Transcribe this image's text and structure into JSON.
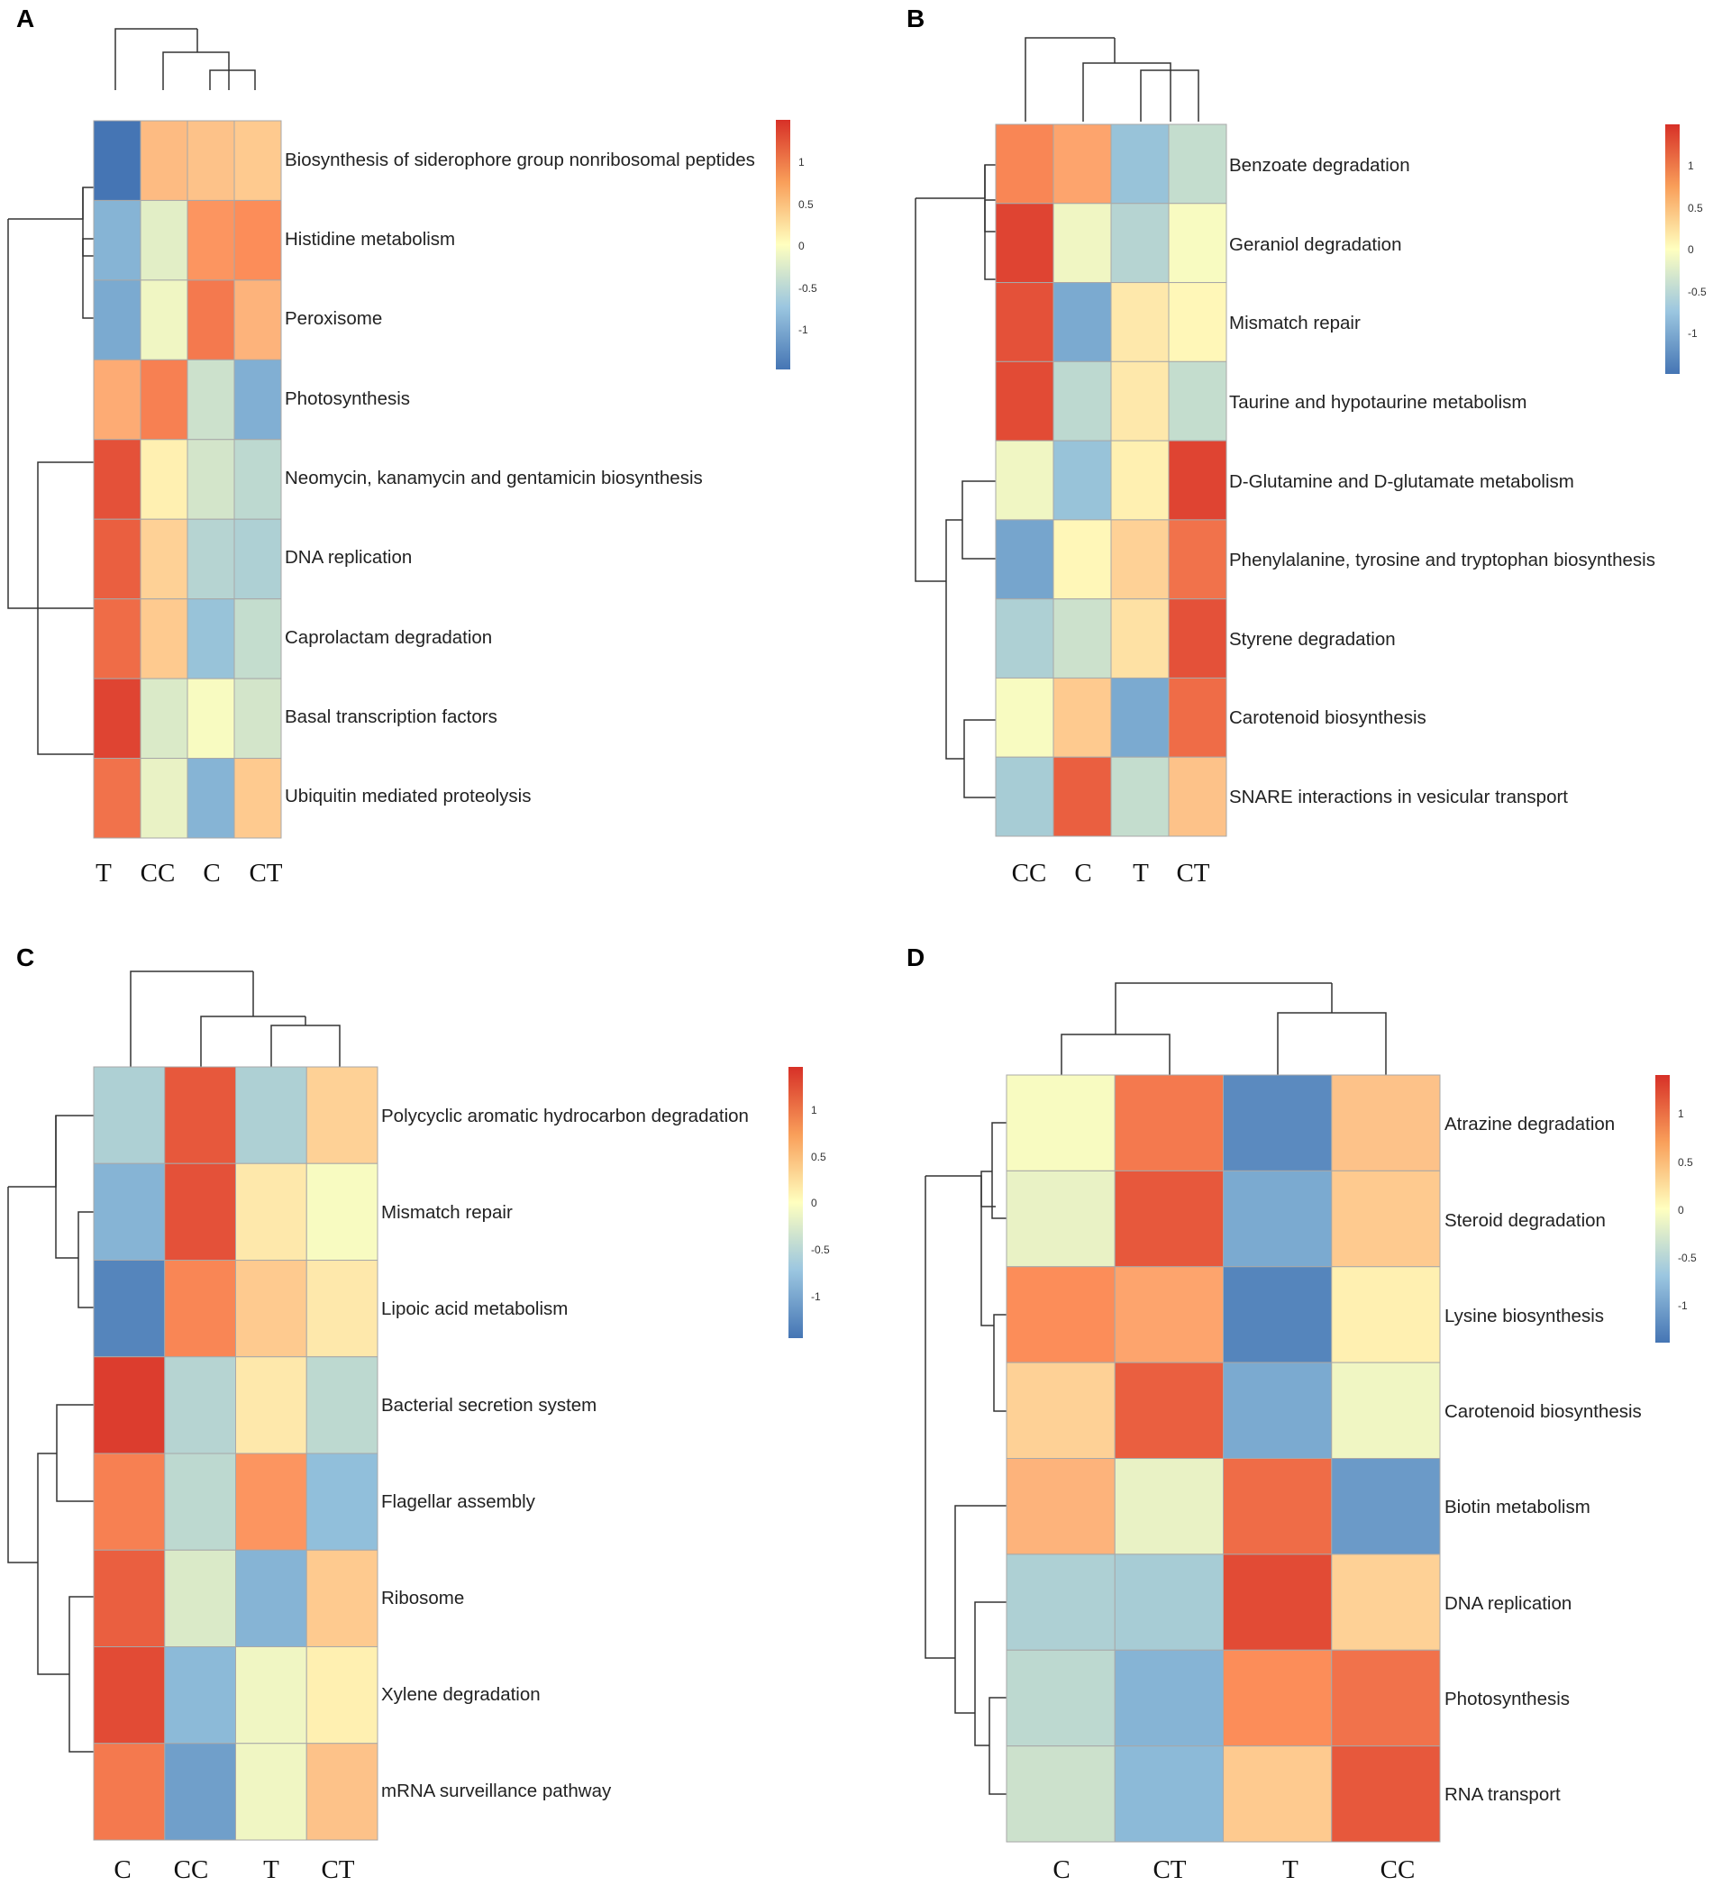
{
  "chart_data": [
    {
      "panel": "A",
      "type": "heatmap",
      "columns": [
        "T",
        "CC",
        "C",
        "CT"
      ],
      "rows": [
        "Biosynthesis of siderophore group nonribosomal peptides",
        "Histidine metabolism",
        "Peroxisome",
        "Photosynthesis",
        "Neomycin, kanamycin and gentamicin biosynthesis",
        "DNA replication",
        "Caprolactam degradation",
        "Basal transcription factors",
        "Ubiquitin mediated proteolysis"
      ],
      "values": [
        [
          -1.45,
          0.45,
          0.4,
          0.35
        ],
        [
          -0.85,
          -0.2,
          0.7,
          0.75
        ],
        [
          -0.95,
          -0.1,
          0.9,
          0.5
        ],
        [
          0.55,
          0.85,
          -0.35,
          -0.9
        ],
        [
          1.2,
          0.1,
          -0.3,
          -0.45
        ],
        [
          1.1,
          0.3,
          -0.5,
          -0.55
        ],
        [
          1.0,
          0.35,
          -0.7,
          -0.4
        ],
        [
          1.3,
          -0.25,
          -0.05,
          -0.3
        ],
        [
          0.95,
          -0.15,
          -0.85,
          0.35
        ]
      ],
      "legend_ticks": [
        "1",
        "0.5",
        "0",
        "-0.5",
        "-1"
      ],
      "value_range": [
        -1.45,
        1.45
      ]
    },
    {
      "panel": "B",
      "type": "heatmap",
      "columns": [
        "CC",
        "C",
        "T",
        "CT"
      ],
      "rows": [
        "Benzoate degradation",
        "Geraniol degradation",
        "Mismatch repair",
        "Taurine and hypotaurine metabolism",
        "D-Glutamine and D-glutamate metabolism",
        "Phenylalanine, tyrosine and tryptophan biosynthesis",
        "Styrene degradation",
        "Carotenoid biosynthesis",
        "SNARE interactions in vesicular transport"
      ],
      "values": [
        [
          0.8,
          0.6,
          -0.7,
          -0.4
        ],
        [
          1.3,
          -0.1,
          -0.5,
          -0.05
        ],
        [
          1.2,
          -0.95,
          0.15,
          0.05
        ],
        [
          1.25,
          -0.45,
          0.15,
          -0.4
        ],
        [
          -0.1,
          -0.7,
          0.1,
          1.3
        ],
        [
          -1.0,
          0.05,
          0.3,
          0.95
        ],
        [
          -0.55,
          -0.35,
          0.2,
          1.2
        ],
        [
          -0.05,
          0.35,
          -0.95,
          1.0
        ],
        [
          -0.6,
          1.1,
          -0.4,
          0.4
        ]
      ],
      "legend_ticks": [
        "1",
        "0.5",
        "0",
        "-0.5",
        "-1"
      ],
      "value_range": [
        -1.45,
        1.45
      ]
    },
    {
      "panel": "C",
      "type": "heatmap",
      "columns": [
        "C",
        "CC",
        "T",
        "CT"
      ],
      "rows": [
        "Polycyclic aromatic hydrocarbon degradation",
        "Mismatch repair",
        "Lipoic acid metabolism",
        "Bacterial secretion system",
        "Flagellar assembly",
        "Ribosome",
        "Xylene degradation",
        "mRNA surveillance pathway"
      ],
      "values": [
        [
          -0.55,
          1.15,
          -0.55,
          0.3
        ],
        [
          -0.85,
          1.2,
          0.15,
          -0.05
        ],
        [
          -1.3,
          0.8,
          0.35,
          0.15
        ],
        [
          1.35,
          -0.5,
          0.15,
          -0.45
        ],
        [
          0.85,
          -0.45,
          0.7,
          -0.75
        ],
        [
          1.1,
          -0.25,
          -0.85,
          0.35
        ],
        [
          1.25,
          -0.8,
          -0.1,
          0.1
        ],
        [
          0.9,
          -1.05,
          -0.1,
          0.4
        ]
      ],
      "legend_ticks": [
        "1",
        "0.5",
        "0",
        "-0.5",
        "-1"
      ],
      "value_range": [
        -1.45,
        1.45
      ]
    },
    {
      "panel": "D",
      "type": "heatmap",
      "columns": [
        "C",
        "CT",
        "T",
        "CC"
      ],
      "rows": [
        "Atrazine degradation",
        "Steroid degradation",
        "Lysine biosynthesis",
        "Carotenoid biosynthesis",
        "Biotin metabolism",
        "DNA replication",
        "Photosynthesis",
        "RNA transport"
      ],
      "values": [
        [
          -0.05,
          0.9,
          -1.25,
          0.4
        ],
        [
          -0.15,
          1.15,
          -0.95,
          0.35
        ],
        [
          0.75,
          0.6,
          -1.3,
          0.1
        ],
        [
          0.3,
          1.1,
          -0.95,
          -0.1
        ],
        [
          0.5,
          -0.15,
          1.0,
          -1.1
        ],
        [
          -0.55,
          -0.6,
          1.25,
          0.3
        ],
        [
          -0.45,
          -0.85,
          0.75,
          0.95
        ],
        [
          -0.35,
          -0.8,
          0.35,
          1.15
        ]
      ],
      "legend_ticks": [
        "1",
        "0.5",
        "0",
        "-0.5",
        "-1"
      ],
      "value_range": [
        -1.45,
        1.45
      ]
    }
  ]
}
